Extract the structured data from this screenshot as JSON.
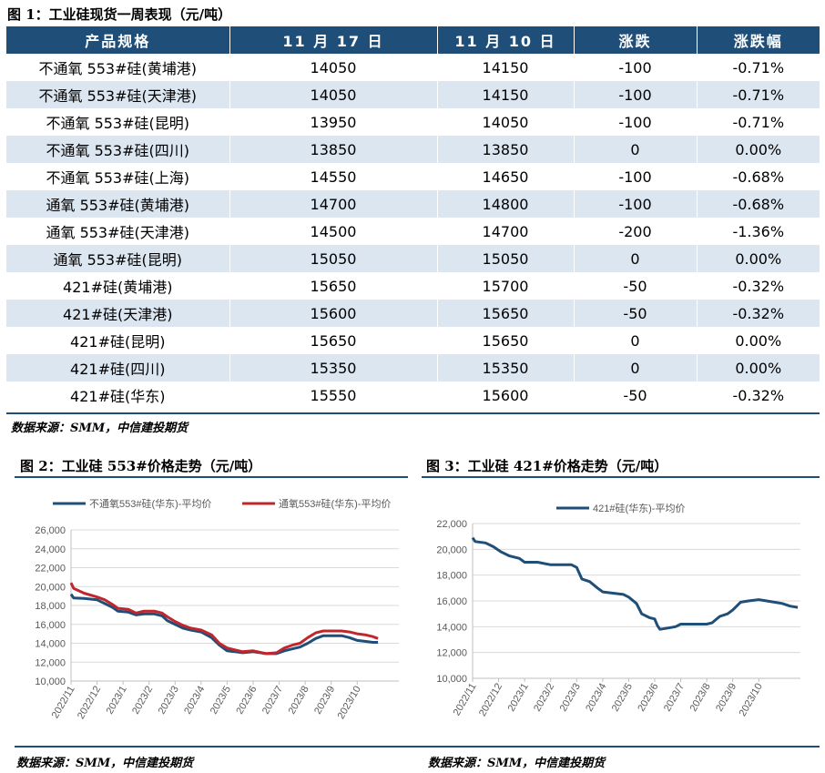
{
  "fig1": {
    "title": "图 1：工业硅现货一周表现（元/吨）",
    "headers": [
      "产品规格",
      "11 月 17 日",
      "11 月 10 日",
      "涨跌",
      "涨跌幅"
    ],
    "rows": [
      [
        "不通氧 553#硅(黄埔港)",
        "14050",
        "14150",
        "-100",
        "-0.71%"
      ],
      [
        "不通氧 553#硅(天津港)",
        "14050",
        "14150",
        "-100",
        "-0.71%"
      ],
      [
        "不通氧 553#硅(昆明)",
        "13950",
        "14050",
        "-100",
        "-0.71%"
      ],
      [
        "不通氧 553#硅(四川)",
        "13850",
        "13850",
        "0",
        "0.00%"
      ],
      [
        "不通氧 553#硅(上海)",
        "14550",
        "14650",
        "-100",
        "-0.68%"
      ],
      [
        "通氧 553#硅(黄埔港)",
        "14700",
        "14800",
        "-100",
        "-0.68%"
      ],
      [
        "通氧 553#硅(天津港)",
        "14500",
        "14700",
        "-200",
        "-1.36%"
      ],
      [
        "通氧 553#硅(昆明)",
        "15050",
        "15050",
        "0",
        "0.00%"
      ],
      [
        "421#硅(黄埔港)",
        "15650",
        "15700",
        "-50",
        "-0.32%"
      ],
      [
        "421#硅(天津港)",
        "15600",
        "15650",
        "-50",
        "-0.32%"
      ],
      [
        "421#硅(昆明)",
        "15650",
        "15650",
        "0",
        "0.00%"
      ],
      [
        "421#硅(四川)",
        "15350",
        "15350",
        "0",
        "0.00%"
      ],
      [
        "421#硅(华东)",
        "15550",
        "15600",
        "-50",
        "-0.32%"
      ]
    ],
    "source": "数据来源：SMM，中信建投期货"
  },
  "fig2": {
    "title": "图 2：工业硅 553#价格走势（元/吨）",
    "source": "数据来源：SMM，中信建投期货"
  },
  "fig3": {
    "title": "图 3：工业硅 421#价格走势（元/吨）",
    "source": "数据来源：SMM，中信建投期货"
  },
  "colors": {
    "header_bg": "#1f4e79",
    "row_alt": "#dce6f1",
    "series_blue": "#1f4e79",
    "series_red": "#c0272d"
  },
  "chart_data": [
    {
      "type": "line",
      "ylim": [
        10000,
        26000
      ],
      "yticks": [
        "10,000",
        "12,000",
        "14,000",
        "16,000",
        "18,000",
        "20,000",
        "22,000",
        "24,000",
        "26,000"
      ],
      "x_tick_labels": [
        "2022/11",
        "2022/12",
        "2023/1",
        "2023/2",
        "2023/3",
        "2023/4",
        "2023/5",
        "2023/6",
        "2023/7",
        "2023/8",
        "2023/9",
        "2023/10"
      ],
      "xlim": [
        0,
        12.6
      ],
      "legend": "top",
      "series": [
        {
          "name": "不通氧553#硅(华东)-平均价",
          "color": "#1f4e79",
          "points": [
            [
              0,
              19200
            ],
            [
              0.1,
              18800
            ],
            [
              0.5,
              18750
            ],
            [
              1,
              18600
            ],
            [
              1.3,
              18200
            ],
            [
              1.6,
              17800
            ],
            [
              1.8,
              17400
            ],
            [
              2.2,
              17300
            ],
            [
              2.5,
              17000
            ],
            [
              2.8,
              17100
            ],
            [
              3.2,
              17100
            ],
            [
              3.5,
              16900
            ],
            [
              3.7,
              16400
            ],
            [
              4,
              16000
            ],
            [
              4.3,
              15600
            ],
            [
              4.6,
              15400
            ],
            [
              5,
              15200
            ],
            [
              5.4,
              14600
            ],
            [
              5.7,
              13800
            ],
            [
              6,
              13200
            ],
            [
              6.3,
              13100
            ],
            [
              6.6,
              13000
            ],
            [
              7,
              13100
            ],
            [
              7.5,
              12900
            ],
            [
              7.9,
              12900
            ],
            [
              8.2,
              13200
            ],
            [
              8.5,
              13400
            ],
            [
              8.8,
              13600
            ],
            [
              9.1,
              14000
            ],
            [
              9.4,
              14500
            ],
            [
              9.7,
              14800
            ],
            [
              10.1,
              14800
            ],
            [
              10.4,
              14800
            ],
            [
              10.7,
              14600
            ],
            [
              11,
              14300
            ],
            [
              11.3,
              14200
            ],
            [
              11.6,
              14100
            ],
            [
              11.8,
              14100
            ]
          ]
        },
        {
          "name": "通氧553#硅(华东)-平均价",
          "color": "#c0272d",
          "points": [
            [
              0,
              20400
            ],
            [
              0.1,
              19800
            ],
            [
              0.5,
              19300
            ],
            [
              1,
              18900
            ],
            [
              1.3,
              18600
            ],
            [
              1.6,
              18100
            ],
            [
              1.8,
              17700
            ],
            [
              2.2,
              17600
            ],
            [
              2.5,
              17200
            ],
            [
              2.8,
              17400
            ],
            [
              3.2,
              17400
            ],
            [
              3.5,
              17200
            ],
            [
              3.7,
              16800
            ],
            [
              4,
              16300
            ],
            [
              4.3,
              15900
            ],
            [
              4.6,
              15600
            ],
            [
              5,
              15400
            ],
            [
              5.4,
              14900
            ],
            [
              5.7,
              14000
            ],
            [
              6,
              13500
            ],
            [
              6.3,
              13300
            ],
            [
              6.6,
              13100
            ],
            [
              7,
              13200
            ],
            [
              7.5,
              12900
            ],
            [
              7.9,
              13000
            ],
            [
              8.2,
              13500
            ],
            [
              8.5,
              13800
            ],
            [
              8.8,
              14000
            ],
            [
              9.1,
              14600
            ],
            [
              9.4,
              15100
            ],
            [
              9.7,
              15300
            ],
            [
              10.1,
              15300
            ],
            [
              10.4,
              15300
            ],
            [
              10.7,
              15200
            ],
            [
              11,
              15000
            ],
            [
              11.3,
              14900
            ],
            [
              11.6,
              14700
            ],
            [
              11.8,
              14500
            ]
          ]
        }
      ]
    },
    {
      "type": "line",
      "ylim": [
        10000,
        22000
      ],
      "yticks": [
        "10,000",
        "12,000",
        "14,000",
        "16,000",
        "18,000",
        "20,000",
        "22,000"
      ],
      "x_tick_labels": [
        "2022/11",
        "2022/12",
        "2023/1",
        "2023/2",
        "2023/3",
        "2023/4",
        "2023/5",
        "2023/6",
        "2023/7",
        "2023/8",
        "2023/9",
        "2023/10"
      ],
      "xlim": [
        0,
        12.6
      ],
      "legend": "top",
      "series": [
        {
          "name": "421#硅(华东)-平均价",
          "color": "#1f4e79",
          "points": [
            [
              0,
              20900
            ],
            [
              0.1,
              20600
            ],
            [
              0.5,
              20500
            ],
            [
              0.8,
              20200
            ],
            [
              1.1,
              19800
            ],
            [
              1.4,
              19500
            ],
            [
              1.8,
              19300
            ],
            [
              2,
              19000
            ],
            [
              2.5,
              19000
            ],
            [
              3,
              18800
            ],
            [
              3.5,
              18800
            ],
            [
              3.8,
              18800
            ],
            [
              4,
              18600
            ],
            [
              4.2,
              17700
            ],
            [
              4.5,
              17500
            ],
            [
              4.8,
              17000
            ],
            [
              5,
              16700
            ],
            [
              5.4,
              16600
            ],
            [
              5.8,
              16500
            ],
            [
              6,
              16300
            ],
            [
              6.3,
              15800
            ],
            [
              6.5,
              15000
            ],
            [
              6.8,
              14700
            ],
            [
              7,
              14600
            ],
            [
              7.1,
              14100
            ],
            [
              7.2,
              13800
            ],
            [
              7.5,
              13900
            ],
            [
              7.8,
              14000
            ],
            [
              8,
              14200
            ],
            [
              8.5,
              14200
            ],
            [
              9,
              14200
            ],
            [
              9.2,
              14300
            ],
            [
              9.5,
              14800
            ],
            [
              9.8,
              15000
            ],
            [
              10,
              15300
            ],
            [
              10.3,
              15900
            ],
            [
              10.6,
              16000
            ],
            [
              11,
              16100
            ],
            [
              11.3,
              16000
            ],
            [
              11.6,
              15900
            ],
            [
              11.9,
              15800
            ],
            [
              12.2,
              15600
            ],
            [
              12.5,
              15500
            ]
          ]
        }
      ]
    }
  ]
}
